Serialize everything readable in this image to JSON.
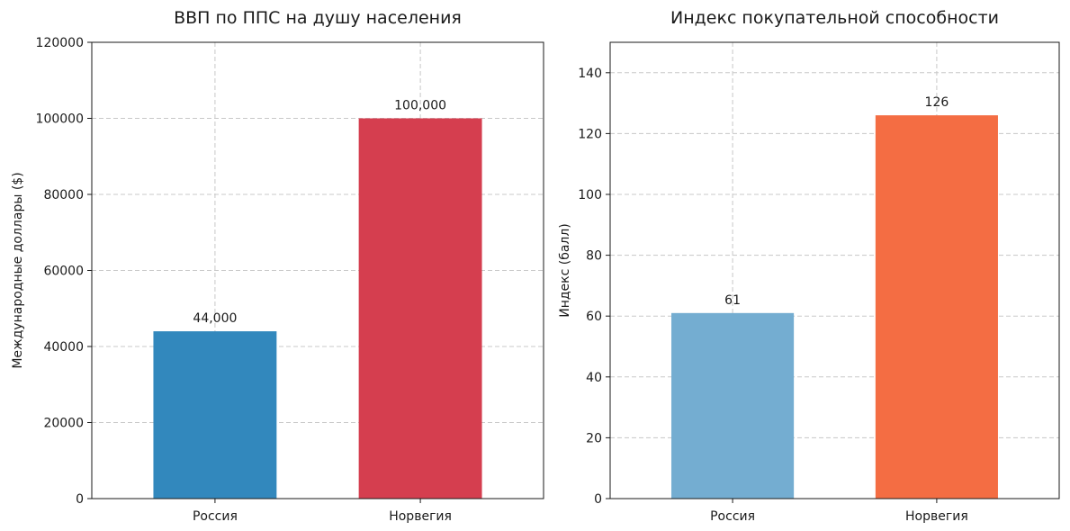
{
  "chart_data": [
    {
      "type": "bar",
      "title": "ВВП по ППС на душу населения",
      "ylabel": "Международные доллары ($)",
      "xlabel": "",
      "categories": [
        "Россия",
        "Норвегия"
      ],
      "values": [
        44000,
        100000
      ],
      "value_labels": [
        "44,000",
        "100,000"
      ],
      "colors": [
        "#3288bd",
        "#d53e4f"
      ],
      "ylim": [
        0,
        120000
      ],
      "yticks": [
        0,
        20000,
        40000,
        60000,
        80000,
        100000,
        120000
      ],
      "ytick_labels": [
        "0",
        "20000",
        "40000",
        "60000",
        "80000",
        "100000",
        "120000"
      ],
      "grid": true
    },
    {
      "type": "bar",
      "title": "Индекс покупательной способности",
      "ylabel": "Индекс (балл)",
      "xlabel": "",
      "categories": [
        "Россия",
        "Норвегия"
      ],
      "values": [
        61,
        126
      ],
      "value_labels": [
        "61",
        "126"
      ],
      "colors": [
        "#74add1",
        "#f46d43"
      ],
      "ylim": [
        0,
        150
      ],
      "yticks": [
        0,
        20,
        40,
        60,
        80,
        100,
        120,
        140
      ],
      "ytick_labels": [
        "0",
        "20",
        "40",
        "60",
        "80",
        "100",
        "120",
        "140"
      ],
      "grid": true
    }
  ]
}
